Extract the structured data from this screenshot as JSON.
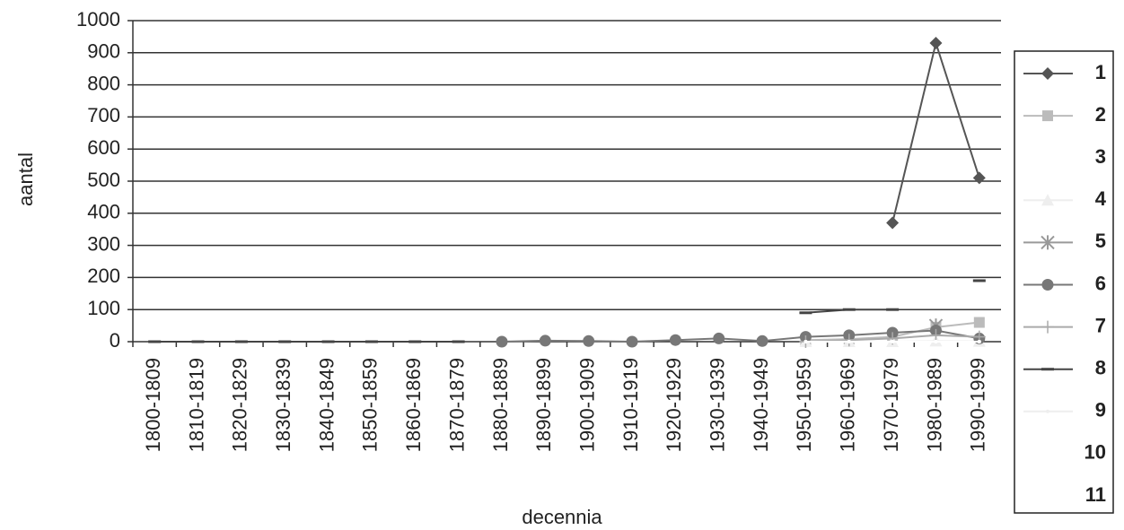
{
  "chart_data": {
    "type": "line",
    "x_label": "decennia",
    "y_label": "aantal",
    "categories": [
      "1800-1809",
      "1810-1819",
      "1820-1829",
      "1830-1839",
      "1840-1849",
      "1850-1859",
      "1860-1869",
      "1870-1879",
      "1880-1889",
      "1890-1899",
      "1900-1909",
      "1910-1919",
      "1920-1929",
      "1930-1939",
      "1940-1949",
      "1950-1959",
      "1960-1969",
      "1970-1979",
      "1980-1989",
      "1990-1999"
    ],
    "ylim": [
      0,
      1000
    ],
    "yticks": [
      0,
      100,
      200,
      300,
      400,
      500,
      600,
      700,
      800,
      900,
      1000
    ],
    "grid": true,
    "legend": "right",
    "series": [
      {
        "name": "1",
        "color": "#555555",
        "marker": "diamond",
        "values": [
          null,
          null,
          null,
          null,
          null,
          null,
          null,
          null,
          null,
          null,
          null,
          null,
          null,
          null,
          null,
          null,
          null,
          370,
          930,
          510
        ]
      },
      {
        "name": "2",
        "color": "#bbbbbb",
        "marker": "square",
        "values": [
          null,
          null,
          null,
          null,
          null,
          null,
          null,
          null,
          null,
          null,
          null,
          null,
          null,
          null,
          null,
          5,
          8,
          15,
          45,
          60
        ]
      },
      {
        "name": "3",
        "color": "#ffffff",
        "marker": "none",
        "values": [
          null,
          null,
          null,
          null,
          null,
          null,
          null,
          null,
          null,
          null,
          null,
          null,
          null,
          null,
          null,
          0,
          0,
          0,
          0,
          0
        ]
      },
      {
        "name": "4",
        "color": "#eeeeee",
        "marker": "triangle",
        "values": [
          null,
          null,
          null,
          null,
          null,
          null,
          null,
          null,
          null,
          null,
          null,
          null,
          null,
          null,
          null,
          0,
          0,
          0,
          2,
          1
        ]
      },
      {
        "name": "5",
        "color": "#999999",
        "marker": "star",
        "values": [
          null,
          null,
          null,
          null,
          null,
          null,
          null,
          null,
          null,
          null,
          null,
          null,
          null,
          null,
          null,
          null,
          null,
          null,
          50,
          null
        ]
      },
      {
        "name": "6",
        "color": "#777777",
        "marker": "circle",
        "values": [
          null,
          null,
          null,
          null,
          null,
          null,
          null,
          null,
          0,
          3,
          2,
          0,
          5,
          10,
          2,
          15,
          20,
          28,
          35,
          10
        ]
      },
      {
        "name": "7",
        "color": "#aaaaaa",
        "marker": "plus",
        "values": [
          null,
          null,
          null,
          null,
          null,
          null,
          null,
          null,
          null,
          null,
          null,
          null,
          null,
          null,
          null,
          0,
          5,
          10,
          20,
          15
        ]
      },
      {
        "name": "8",
        "color": "#444444",
        "marker": "dash",
        "values": [
          0,
          0,
          0,
          0,
          0,
          0,
          0,
          0,
          null,
          null,
          null,
          null,
          null,
          null,
          null,
          90,
          100,
          100,
          null,
          190
        ]
      },
      {
        "name": "9",
        "color": "#eeeeee",
        "marker": "none",
        "values": [
          null,
          null,
          null,
          null,
          null,
          null,
          null,
          null,
          null,
          null,
          null,
          null,
          null,
          null,
          null,
          0,
          0,
          0,
          0,
          0
        ]
      },
      {
        "name": "10",
        "color": "#ffffff",
        "marker": "none",
        "values": [
          null,
          null,
          null,
          null,
          null,
          null,
          null,
          null,
          null,
          null,
          null,
          null,
          null,
          null,
          null,
          0,
          0,
          0,
          0,
          0
        ]
      },
      {
        "name": "11",
        "color": "#ffffff",
        "marker": "none",
        "values": [
          null,
          null,
          null,
          null,
          null,
          null,
          null,
          null,
          null,
          null,
          null,
          null,
          null,
          null,
          null,
          0,
          0,
          0,
          0,
          0
        ]
      }
    ]
  }
}
